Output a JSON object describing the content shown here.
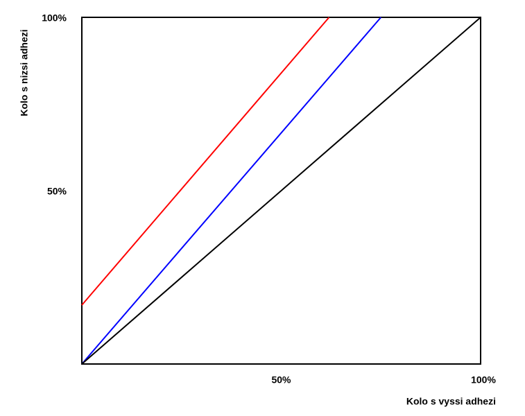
{
  "chart_data": {
    "type": "line",
    "x_label": "Kolo s vyssi adhezi",
    "y_label": "Kolo s nizsi adhezi",
    "xlim": [
      0,
      100
    ],
    "ylim": [
      0,
      100
    ],
    "xticks": [
      {
        "value": 50,
        "label": "50%"
      },
      {
        "value": 100,
        "label": "100%"
      }
    ],
    "yticks": [
      {
        "value": 50,
        "label": "50%"
      },
      {
        "value": 100,
        "label": "100%"
      }
    ],
    "series": [
      {
        "color": "#ff0000",
        "x": [
          0,
          62
        ],
        "values": [
          17,
          100
        ]
      },
      {
        "color": "#0000ff",
        "x": [
          0,
          75
        ],
        "values": [
          0,
          100
        ]
      },
      {
        "color": "#000000",
        "x": [
          0,
          100
        ],
        "values": [
          0,
          100
        ]
      }
    ]
  }
}
